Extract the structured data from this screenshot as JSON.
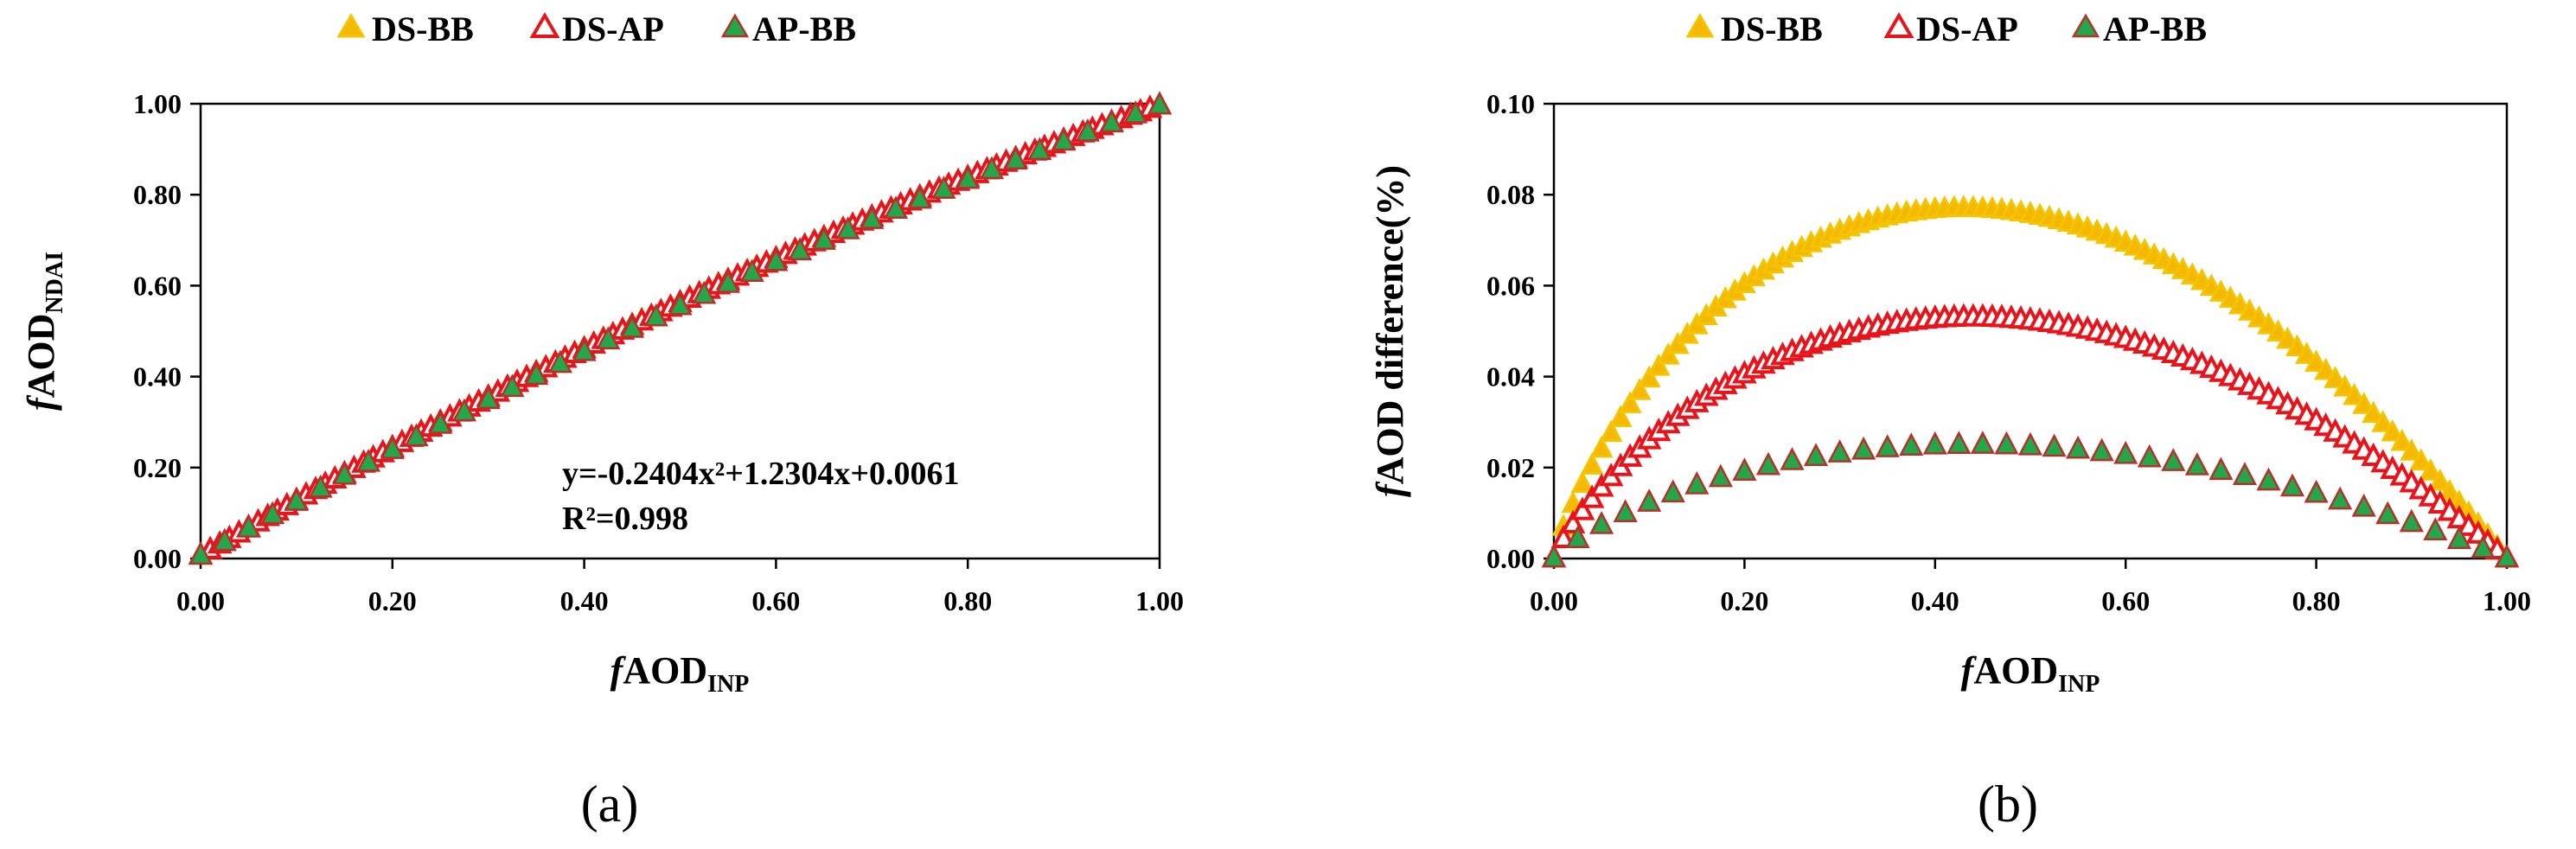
{
  "colors": {
    "ds_bb_fill": "#F5B800",
    "ds_bb_edge": "#F5C400",
    "ds_ap_fill": "#FFFFFF",
    "ds_ap_edge": "#E8141C",
    "ap_bb_fill": "#22A84A",
    "ap_bb_edge": "#B5322A",
    "axis": "#000000"
  },
  "chart_data": [
    {
      "type": "scatter",
      "panel_label": "(a)",
      "xlabel": {
        "prefix": "f",
        "main": "AOD",
        "sub": "INP"
      },
      "ylabel": {
        "prefix": "f",
        "main": "AOD",
        "sub": "NDAI"
      },
      "xlim": [
        0,
        1
      ],
      "ylim": [
        0,
        1
      ],
      "xticks": [
        "0.00",
        "0.20",
        "0.40",
        "0.60",
        "0.80",
        "1.00"
      ],
      "yticks": [
        "0.00",
        "0.20",
        "0.40",
        "0.60",
        "0.80",
        "1.00"
      ],
      "legend": [
        "DS-BB",
        "DS-AP",
        "AP-BB"
      ],
      "legend_position": "top",
      "annotation": {
        "equation": "y=-0.2404x²+1.2304x+0.0061",
        "r2": "R²=0.998"
      },
      "series": [
        {
          "name": "DS-BB",
          "model": "y = 0.0061 + 1.2304x - 0.2404x² + 0.01x(1-x)",
          "x_step": 0.01,
          "x_range": [
            0,
            1
          ]
        },
        {
          "name": "DS-AP",
          "model": "y = 0.0061 + 1.2304x - 0.2404x²",
          "x_step": 0.01,
          "x_range": [
            0,
            1
          ]
        },
        {
          "name": "AP-BB",
          "model": "y = 0.0061 + 1.2304x - 0.2404x² - 0.025x(1-x)",
          "x_step": 0.025,
          "x_range": [
            0,
            1
          ]
        }
      ]
    },
    {
      "type": "scatter",
      "panel_label": "(b)",
      "xlabel": {
        "prefix": "f",
        "main": "AOD",
        "sub": "INP"
      },
      "ylabel": {
        "prefix": "f",
        "main": "AOD difference(%)",
        "sub": ""
      },
      "xlim": [
        0,
        1
      ],
      "ylim": [
        0,
        0.1
      ],
      "xticks": [
        "0.00",
        "0.20",
        "0.40",
        "0.60",
        "0.80",
        "1.00"
      ],
      "yticks": [
        "0.00",
        "0.02",
        "0.04",
        "0.06",
        "0.08",
        "0.10"
      ],
      "legend": [
        "DS-BB",
        "DS-AP",
        "AP-BB"
      ],
      "legend_position": "top",
      "series": [
        {
          "name": "DS-BB",
          "peak_x": 0.43,
          "peak_y": 0.077,
          "x_step": 0.01,
          "x_range": [
            0,
            1
          ]
        },
        {
          "name": "DS-AP",
          "peak_x": 0.44,
          "peak_y": 0.053,
          "x_step": 0.01,
          "x_range": [
            0,
            1
          ]
        },
        {
          "name": "AP-BB",
          "peak_x": 0.44,
          "peak_y": 0.025,
          "x_step": 0.025,
          "x_range": [
            0,
            1
          ]
        }
      ]
    }
  ]
}
